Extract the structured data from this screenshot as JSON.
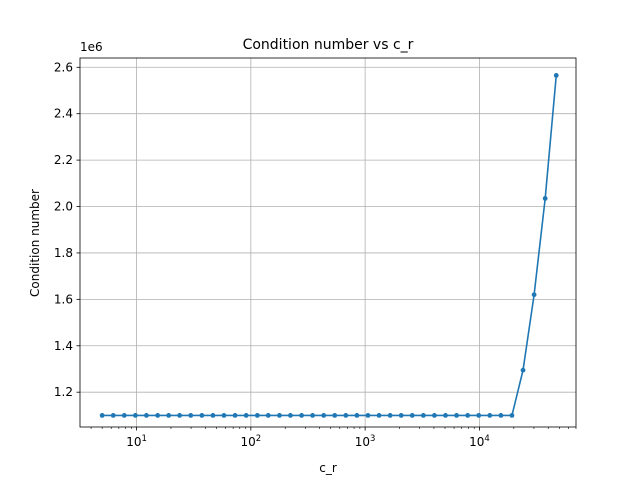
{
  "chart_data": {
    "type": "line",
    "title": "Condition number vs c_r",
    "xlabel": "c_r",
    "ylabel": "Condition number",
    "x_scale": "log",
    "y_offset_label": "1e6",
    "xlim": [
      3.2,
      70000
    ],
    "ylim": [
      1050000,
      2640000
    ],
    "grid": true,
    "line_color": "#1f77b4",
    "x_ticks": [
      {
        "base": "10",
        "exp": "1",
        "value": 10
      },
      {
        "base": "10",
        "exp": "2",
        "value": 100
      },
      {
        "base": "10",
        "exp": "3",
        "value": 1000
      },
      {
        "base": "10",
        "exp": "4",
        "value": 10000
      }
    ],
    "y_ticks": [
      {
        "label": "1.2",
        "value": 1200000
      },
      {
        "label": "1.4",
        "value": 1400000
      },
      {
        "label": "1.6",
        "value": 1600000
      },
      {
        "label": "1.8",
        "value": 1800000
      },
      {
        "label": "2.0",
        "value": 2000000
      },
      {
        "label": "2.2",
        "value": 2200000
      },
      {
        "label": "2.4",
        "value": 2400000
      },
      {
        "label": "2.6",
        "value": 2600000
      }
    ],
    "series": [
      {
        "x": [
          5,
          6.25,
          7.81,
          9.77,
          12.2,
          15.3,
          19.1,
          23.8,
          29.8,
          37.3,
          46.6,
          58.2,
          72.8,
          91,
          114,
          142,
          178,
          222,
          278,
          347,
          434,
          542,
          678,
          847,
          1059,
          1324,
          1655,
          2068,
          2585,
          3232,
          4040,
          5050,
          6312,
          7890,
          9863,
          12329,
          15411,
          19264,
          24080,
          30100,
          37625,
          47031
        ],
        "y": [
          1100000,
          1100000,
          1100000,
          1100000,
          1100000,
          1100000,
          1100000,
          1100000,
          1100000,
          1100000,
          1100000,
          1100000,
          1100000,
          1100000,
          1100000,
          1100000,
          1100000,
          1100000,
          1100000,
          1100000,
          1100000,
          1100000,
          1100000,
          1100000,
          1100000,
          1100000,
          1100000,
          1100000,
          1100000,
          1100000,
          1100000,
          1100000,
          1100000,
          1100000,
          1100000,
          1100000,
          1100000,
          1100000,
          1295000,
          1620000,
          2035000,
          2565000
        ]
      }
    ]
  }
}
